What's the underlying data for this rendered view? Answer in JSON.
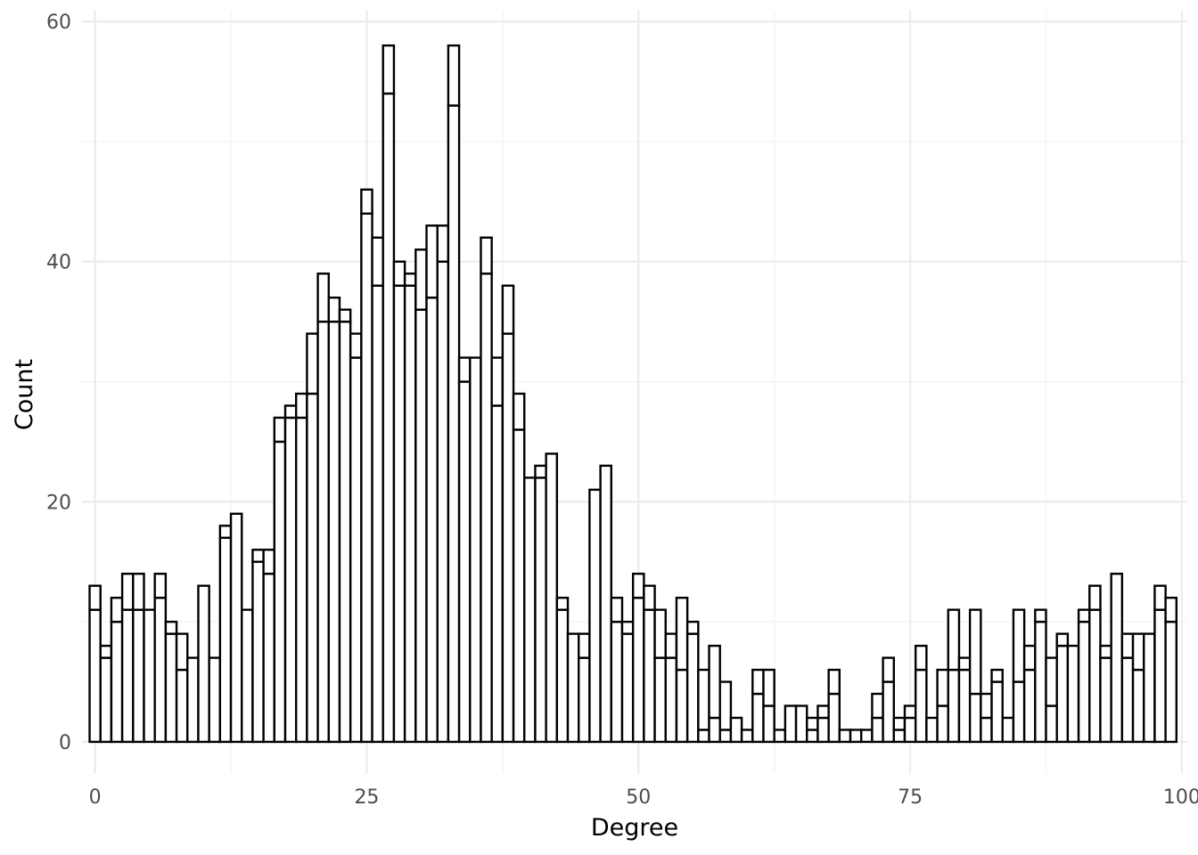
{
  "chart_data": {
    "type": "bar",
    "subtype": "histogram (stacked, two overlapping white-filled groups)",
    "xlabel": "Degree",
    "ylabel": "Count",
    "xlim": [
      -1.2,
      100.5
    ],
    "ylim": [
      -2.6,
      60.9
    ],
    "x_ticks": [
      0,
      25,
      50,
      75,
      100
    ],
    "y_ticks": [
      0,
      20,
      40,
      60
    ],
    "grid": true,
    "legend": "none",
    "bin_width": 1,
    "x": [
      0,
      1,
      2,
      3,
      4,
      5,
      6,
      7,
      8,
      9,
      10,
      11,
      12,
      13,
      14,
      15,
      16,
      17,
      18,
      19,
      20,
      21,
      22,
      23,
      24,
      25,
      26,
      27,
      28,
      29,
      30,
      31,
      32,
      33,
      34,
      35,
      36,
      37,
      38,
      39,
      40,
      41,
      42,
      43,
      44,
      45,
      46,
      47,
      48,
      49,
      50,
      51,
      52,
      53,
      54,
      55,
      56,
      57,
      58,
      59,
      60,
      61,
      62,
      63,
      64,
      65,
      66,
      67,
      68,
      69,
      70,
      71,
      72,
      73,
      74,
      75,
      76,
      77,
      78,
      79,
      80,
      81,
      82,
      83,
      84,
      85,
      86,
      87,
      88,
      89,
      90,
      91,
      92,
      93,
      94,
      95,
      96,
      97,
      98,
      99
    ],
    "series": [
      {
        "values": [
          11,
          7,
          10,
          11,
          11,
          11,
          12,
          9,
          6,
          7,
          13,
          7,
          17,
          19,
          11,
          15,
          14,
          25,
          27,
          27,
          29,
          35,
          35,
          35,
          32,
          44,
          38,
          54,
          38,
          38,
          36,
          37,
          40,
          53,
          30,
          32,
          39,
          28,
          34,
          26,
          22,
          22,
          24,
          11,
          9,
          7,
          21,
          23,
          10,
          9,
          12,
          11,
          7,
          7,
          6,
          9,
          1,
          2,
          1,
          2,
          1,
          4,
          3,
          1,
          3,
          3,
          1,
          2,
          4,
          1,
          1,
          1,
          2,
          5,
          1,
          2,
          6,
          2,
          3,
          6,
          6,
          4,
          2,
          5,
          2,
          5,
          6,
          10,
          3,
          8,
          8,
          10,
          11,
          7,
          14,
          7,
          6,
          9,
          11,
          10
        ]
      },
      {
        "values": [
          2,
          1,
          2,
          3,
          3,
          0,
          2,
          1,
          3,
          0,
          0,
          0,
          1,
          0,
          0,
          1,
          2,
          2,
          1,
          2,
          5,
          4,
          2,
          1,
          2,
          2,
          4,
          4,
          2,
          1,
          5,
          6,
          3,
          5,
          2,
          0,
          3,
          4,
          4,
          3,
          0,
          1,
          0,
          1,
          0,
          2,
          0,
          0,
          2,
          1,
          2,
          2,
          4,
          2,
          6,
          1,
          5,
          6,
          4,
          0,
          0,
          2,
          3,
          0,
          0,
          0,
          1,
          1,
          2,
          0,
          0,
          0,
          2,
          2,
          1,
          1,
          2,
          0,
          3,
          5,
          1,
          7,
          2,
          1,
          0,
          6,
          2,
          1,
          4,
          1,
          0,
          1,
          2,
          1,
          0,
          2,
          3,
          0,
          2,
          2
        ]
      }
    ]
  }
}
